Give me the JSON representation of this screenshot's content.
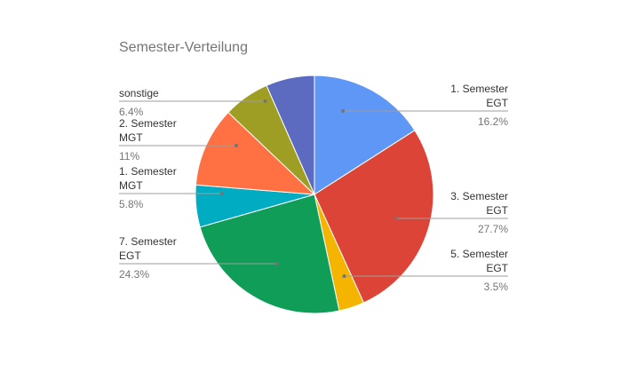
{
  "chart_data": {
    "type": "pie",
    "title": "Semester-Verteilung",
    "legend": "none",
    "slices": [
      {
        "name": "1. Semester EGT",
        "lines": [
          "1. Semester",
          "EGT"
        ],
        "pct_label": "16.2%",
        "value": 16.2,
        "color": "#5e97f6"
      },
      {
        "name": "3. Semester EGT",
        "lines": [
          "3. Semester",
          "EGT"
        ],
        "pct_label": "27.7%",
        "value": 27.7,
        "color": "#db4437"
      },
      {
        "name": "5. Semester EGT",
        "lines": [
          "5. Semester",
          "EGT"
        ],
        "pct_label": "3.5%",
        "value": 3.5,
        "color": "#f4b400"
      },
      {
        "name": "7. Semester EGT",
        "lines": [
          "7. Semester",
          "EGT"
        ],
        "pct_label": "24.3%",
        "value": 24.3,
        "color": "#0f9d58"
      },
      {
        "name": "1. Semester MGT",
        "lines": [
          "1. Semester",
          "MGT"
        ],
        "pct_label": "5.8%",
        "value": 5.8,
        "color": "#00acc1"
      },
      {
        "name": "2. Semester MGT",
        "lines": [
          "2. Semester",
          "MGT"
        ],
        "pct_label": "11%",
        "value": 11,
        "color": "#ff7043"
      },
      {
        "name": "sonstige",
        "lines": [
          "sonstige"
        ],
        "pct_label": "6.4%",
        "value": 6.4,
        "color": "#9e9e25"
      },
      {
        "name": "",
        "lines": [],
        "pct_label": "",
        "value": 6.7,
        "color": "#5c6bc0"
      }
    ]
  }
}
